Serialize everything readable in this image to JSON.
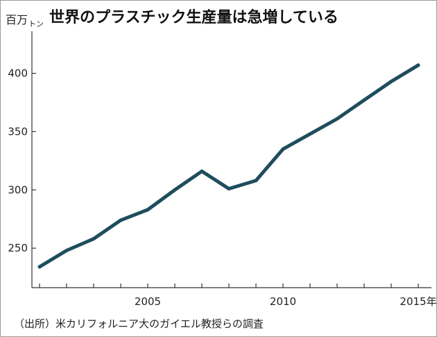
{
  "chart_data": {
    "type": "line",
    "title": "世界のプラスチック生産量は急増している",
    "ylabel_main": "百万",
    "ylabel_unit": "トン",
    "x_year_suffix": "年",
    "source": "（出所）米カリフォルニア大のガイエル教授らの調査",
    "xlim": [
      2001,
      2015
    ],
    "ylim": [
      234,
      420
    ],
    "x_ticks": [
      2001,
      2002,
      2003,
      2004,
      2005,
      2006,
      2007,
      2008,
      2009,
      2010,
      2011,
      2012,
      2013,
      2014,
      2015
    ],
    "x_tick_labels": [
      {
        "x": 2005,
        "label": "2005"
      },
      {
        "x": 2010,
        "label": "2010"
      },
      {
        "x": 2015,
        "label": "2015"
      }
    ],
    "y_ticks": [
      250,
      300,
      350,
      400
    ],
    "series": [
      {
        "color": "#1e4d5c",
        "x": [
          2001,
          2002,
          2003,
          2004,
          2005,
          2006,
          2007,
          2008,
          2009,
          2010,
          2011,
          2012,
          2013,
          2014,
          2015
        ],
        "y": [
          234,
          248,
          258,
          274,
          283,
          300,
          316,
          301,
          308,
          335,
          348,
          361,
          377,
          393,
          407
        ]
      }
    ]
  }
}
